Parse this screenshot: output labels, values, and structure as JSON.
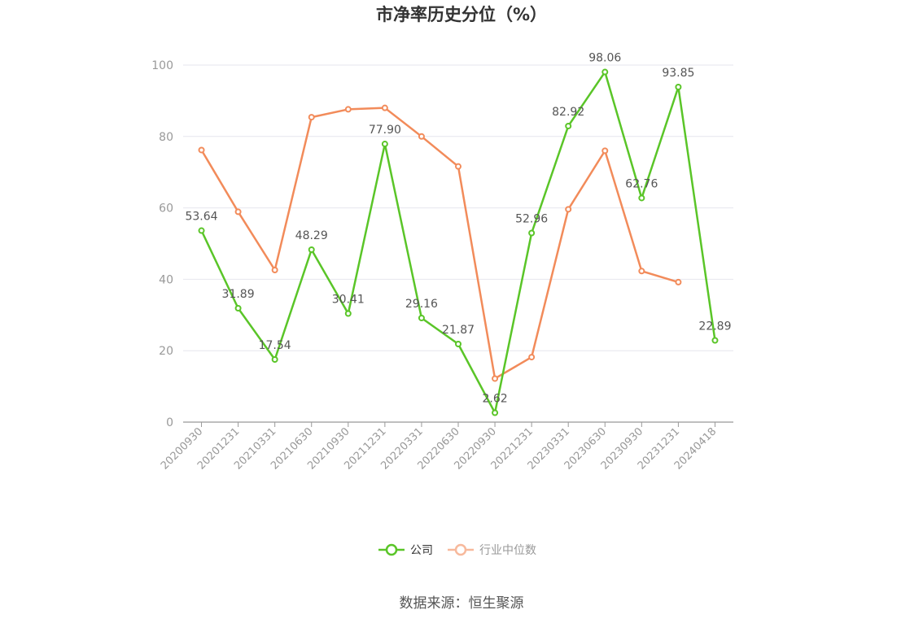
{
  "chart_data": {
    "type": "line",
    "title": "市净率历史分位（%）",
    "xlabel": "",
    "ylabel": "",
    "ylim": [
      0,
      100
    ],
    "yticks": [
      0,
      20,
      40,
      60,
      80,
      100
    ],
    "grid": true,
    "legend": "bottom-center",
    "categories": [
      "20200930",
      "20201231",
      "20210331",
      "20210630",
      "20210930",
      "20211231",
      "20220331",
      "20220630",
      "20220930",
      "20221231",
      "20230331",
      "20230630",
      "20230930",
      "20231231",
      "20240418"
    ],
    "series": [
      {
        "name": "公司",
        "color": "#5ac528",
        "values": [
          53.64,
          31.89,
          17.54,
          48.29,
          30.41,
          77.9,
          29.16,
          21.87,
          2.62,
          52.96,
          82.92,
          98.06,
          62.76,
          93.85,
          22.89
        ],
        "labels": [
          "53.64",
          "31.89",
          "17.54",
          "48.29",
          "30.41",
          "77.90",
          "29.16",
          "21.87",
          "2.62",
          "52.96",
          "82.92",
          "98.06",
          "62.76",
          "93.85",
          "22.89"
        ]
      },
      {
        "name": "行业中位数",
        "color": "#f28b5a",
        "values": [
          76.2,
          58.9,
          42.6,
          85.4,
          87.6,
          88.0,
          80.0,
          71.6,
          12.2,
          18.2,
          59.6,
          76.0,
          42.3,
          39.2,
          null
        ]
      }
    ]
  },
  "source": "数据来源：恒生聚源"
}
